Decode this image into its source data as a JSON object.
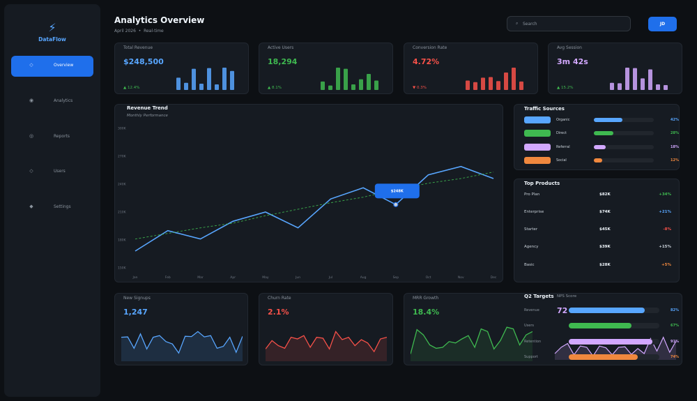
{
  "app": {
    "name": "DataFlow",
    "logo_icon": "lightning-icon"
  },
  "nav": [
    {
      "label": "Overview",
      "icon": "grid-icon",
      "glyph": "◇",
      "active": true
    },
    {
      "label": "Analytics",
      "icon": "analytics-icon",
      "glyph": "◉",
      "active": false
    },
    {
      "label": "Reports",
      "icon": "reports-icon",
      "glyph": "◎",
      "active": false
    },
    {
      "label": "Users",
      "icon": "users-icon",
      "glyph": "◇",
      "active": false
    },
    {
      "label": "Settings",
      "icon": "settings-icon",
      "glyph": "◆",
      "active": false
    }
  ],
  "header": {
    "title": "Analytics Overview",
    "date": "April 2026",
    "mode": "Real-time",
    "search_placeholder": "Search",
    "avatar": "JD"
  },
  "kpis": [
    {
      "label": "Total Revenue",
      "value": "$248,500",
      "delta": "▲ 12.4%",
      "color": "#58a6ff",
      "delta_color": "#3fb950",
      "bars": [
        0.55,
        0.32,
        0.95,
        0.28,
        0.98,
        0.25,
        1.0,
        0.85
      ]
    },
    {
      "label": "Active Users",
      "value": "18,294",
      "delta": "▲ 8.1%",
      "color": "#3fb950",
      "delta_color": "#3fb950",
      "bars": [
        0.38,
        0.2,
        1.0,
        0.95,
        0.25,
        0.48,
        0.72,
        0.42
      ]
    },
    {
      "label": "Conversion Rate",
      "value": "4.72%",
      "delta": "▼ 0.3%",
      "color": "#f85149",
      "delta_color": "#f85149",
      "bars": [
        0.42,
        0.35,
        0.55,
        0.58,
        0.4,
        0.78,
        1.0,
        0.38
      ]
    },
    {
      "label": "Avg Session",
      "value": "3m 42s",
      "delta": "▲ 15.2%",
      "color": "#d2a8ff",
      "delta_color": "#3fb950",
      "bars": [
        0.32,
        0.3,
        1.0,
        0.98,
        0.52,
        0.92,
        0.25,
        0.22
      ]
    }
  ],
  "revenue_chart": {
    "title": "Revenue Trend",
    "subtitle": "Monthly Performance",
    "tooltip": "$248K",
    "chart_data": {
      "type": "line",
      "categories": [
        "Jan",
        "Feb",
        "Mar",
        "Apr",
        "May",
        "Jun",
        "Jul",
        "Aug",
        "Sep",
        "Oct",
        "Nov",
        "Dec"
      ],
      "y_ticks": [
        "150K",
        "180K",
        "210K",
        "240K",
        "270K",
        "300K"
      ],
      "ylim": [
        150,
        300
      ],
      "series": [
        {
          "values": [
            168,
            190,
            181,
            200,
            210,
            193,
            224,
            236,
            218,
            250,
            259,
            246
          ],
          "color": "#58a6ff",
          "style": "solid"
        },
        {
          "values": [
            181,
            187,
            193,
            198,
            206,
            213,
            220,
            226,
            234,
            241,
            246,
            253
          ],
          "color": "#3fb950",
          "style": "dashed"
        }
      ],
      "highlight_index": 8
    }
  },
  "traffic": {
    "title": "Traffic Sources",
    "items": [
      {
        "name": "Organic",
        "pct": "42%",
        "value": 0.48,
        "color": "#58a6ff"
      },
      {
        "name": "Direct",
        "pct": "28%",
        "value": 0.32,
        "color": "#3fb950"
      },
      {
        "name": "Referral",
        "pct": "18%",
        "value": 0.2,
        "color": "#d2a8ff"
      },
      {
        "name": "Social",
        "pct": "12%",
        "value": 0.14,
        "color": "#f0883e"
      }
    ]
  },
  "products": {
    "title": "Top Products",
    "items": [
      {
        "name": "Pro Plan",
        "revenue": "$82K",
        "change": "+34%",
        "color": "#3fb950"
      },
      {
        "name": "Enterprise",
        "revenue": "$74K",
        "change": "+21%",
        "color": "#58a6ff"
      },
      {
        "name": "Starter",
        "revenue": "$45K",
        "change": "-8%",
        "color": "#f85149"
      },
      {
        "name": "Agency",
        "revenue": "$39K",
        "change": "+15%",
        "color": "#c9d1d9"
      },
      {
        "name": "Basic",
        "revenue": "$28K",
        "change": "+5%",
        "color": "#f0883e"
      }
    ]
  },
  "mini_cards": [
    {
      "label": "New Signups",
      "value": "1,247",
      "color": "#58a6ff",
      "fill": "rgba(88,166,255,0.14)",
      "points": [
        0.55,
        0.56,
        0.22,
        0.65,
        0.2,
        0.55,
        0.6,
        0.42,
        0.35,
        0.08,
        0.58,
        0.57,
        0.72,
        0.56,
        0.6,
        0.22,
        0.28,
        0.55,
        0.1,
        0.58
      ]
    },
    {
      "label": "Churn Rate",
      "value": "2.1%",
      "color": "#f85149",
      "fill": "rgba(248,81,73,0.14)",
      "points": [
        0.2,
        0.45,
        0.3,
        0.22,
        0.55,
        0.5,
        0.6,
        0.25,
        0.55,
        0.52,
        0.2,
        0.72,
        0.48,
        0.55,
        0.3,
        0.48,
        0.38,
        0.12,
        0.5,
        0.55
      ]
    },
    {
      "label": "MRR Growth",
      "value": "18.4%",
      "color": "#3fb950",
      "fill": "rgba(63,185,80,0.12)",
      "points": [
        0.05,
        0.78,
        0.62,
        0.32,
        0.22,
        0.25,
        0.42,
        0.38,
        0.5,
        0.6,
        0.25,
        0.8,
        0.72,
        0.2,
        0.45,
        0.85,
        0.8,
        0.32,
        0.62,
        0.72
      ]
    }
  ],
  "q2": {
    "title": "Q2 Targets",
    "nps_label": "NPS Score",
    "nps_value": "72",
    "nps_points": [
      0.25,
      0.5,
      0.65,
      0.2,
      0.55,
      0.5,
      0.15,
      0.55,
      0.48,
      0.2,
      0.5,
      0.52,
      0.22,
      0.45,
      0.25,
      0.85,
      0.35,
      0.9,
      0.3,
      0.75
    ],
    "items": [
      {
        "name": "Revenue",
        "pct": "82%",
        "value": 0.84,
        "color": "#58a6ff"
      },
      {
        "name": "Users",
        "pct": "67%",
        "value": 0.69,
        "color": "#3fb950"
      },
      {
        "name": "Retention",
        "pct": "91%",
        "value": 0.92,
        "color": "#d2a8ff"
      },
      {
        "name": "Support",
        "pct": "74%",
        "value": 0.76,
        "color": "#f0883e"
      }
    ]
  }
}
